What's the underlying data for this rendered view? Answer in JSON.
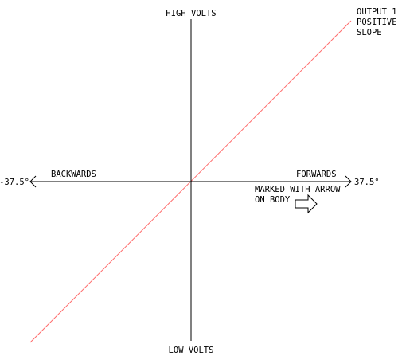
{
  "axes": {
    "y_top_label": "HIGH VOLTS",
    "y_bottom_label": "LOW VOLTS",
    "x_left_label": "BACKWARDS",
    "x_right_label": "FORWARDS",
    "x_left_limit": "-37.5°",
    "x_right_limit": "37.5°"
  },
  "output_line": {
    "label_lines": [
      "OUTPUT 1 -",
      "POSITIVE",
      "SLOPE"
    ],
    "color": "#ff6b6b"
  },
  "direction_note": {
    "lines": [
      "MARKED WITH ARROW",
      "ON BODY"
    ]
  },
  "colors": {
    "axis": "#000000",
    "background": "#ffffff"
  }
}
